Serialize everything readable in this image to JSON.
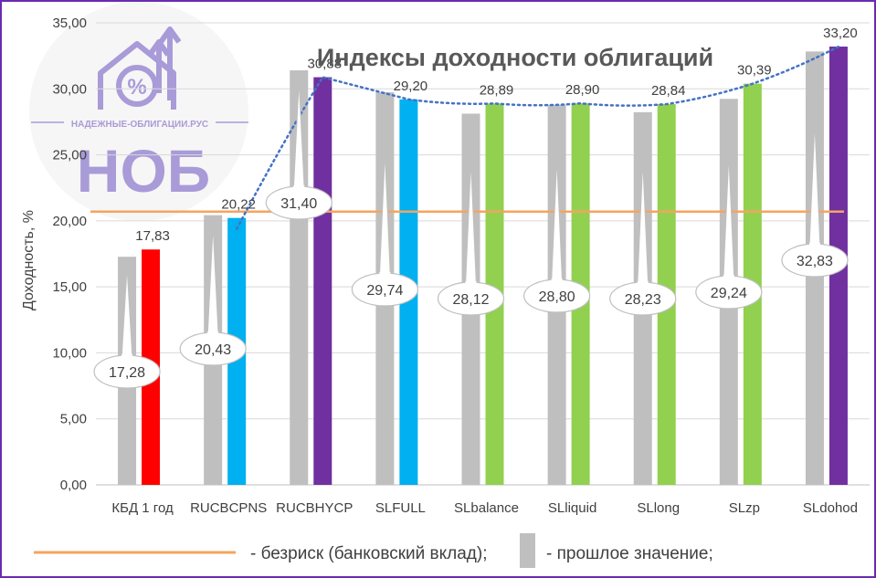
{
  "chart_data": {
    "type": "bar",
    "title": "Индексы доходности облигаций",
    "ylabel": "Доходность, %",
    "xlabel": "",
    "ylim": [
      0,
      35
    ],
    "ytick_labels": [
      "0,00",
      "5,00",
      "10,00",
      "15,00",
      "20,00",
      "25,00",
      "30,00",
      "35,00"
    ],
    "ytick_values": [
      0,
      5,
      10,
      15,
      20,
      25,
      30,
      35
    ],
    "grid": true,
    "categories": [
      "КБД 1 год",
      "RUCBCPNS",
      "RUCBHYCP",
      "SLFULL",
      "SLbalance",
      "SLliquid",
      "SLlong",
      "SLzp",
      "SLdohod"
    ],
    "series": [
      {
        "role": "previous",
        "values": [
          17.28,
          20.43,
          31.4,
          29.74,
          28.12,
          28.8,
          28.23,
          29.24,
          32.83
        ],
        "labels": [
          "17,28",
          "20,43",
          "31,40",
          "29,74",
          "28,12",
          "28,80",
          "28,23",
          "29,24",
          "32,83"
        ],
        "color": "#bfbfbf"
      },
      {
        "role": "current",
        "values": [
          17.83,
          20.22,
          30.88,
          29.2,
          28.89,
          28.9,
          28.84,
          30.39,
          33.2
        ],
        "labels": [
          "17,83",
          "20,22",
          "30,88",
          "29,20",
          "28,89",
          "28,90",
          "28,84",
          "30,39",
          "33,20"
        ],
        "colors": [
          "#ff0000",
          "#00b0f0",
          "#7030a0",
          "#00b0f0",
          "#92d050",
          "#92d050",
          "#92d050",
          "#92d050",
          "#7030a0"
        ]
      }
    ],
    "risk_free_rate": {
      "value": 20.7,
      "color": "#f4a460"
    },
    "trendline": {
      "style": "dotted",
      "color": "#4472c4"
    },
    "legend": {
      "placement": "bottom",
      "items": [
        {
          "label": "- безриск (банковский вклад);",
          "kind": "line",
          "color": "#f4a460"
        },
        {
          "label": "- прошлое значение;",
          "kind": "box",
          "color": "#bfbfbf"
        }
      ]
    }
  },
  "watermark": {
    "site": "НАДЕЖНЫЕ-ОБЛИГАЦИИ.РУС",
    "brand": "НОБ",
    "color": "#a99bd8"
  },
  "colors": {
    "frame": "#6a2bb0",
    "grid": "#d9d9d9",
    "text": "#404040"
  }
}
